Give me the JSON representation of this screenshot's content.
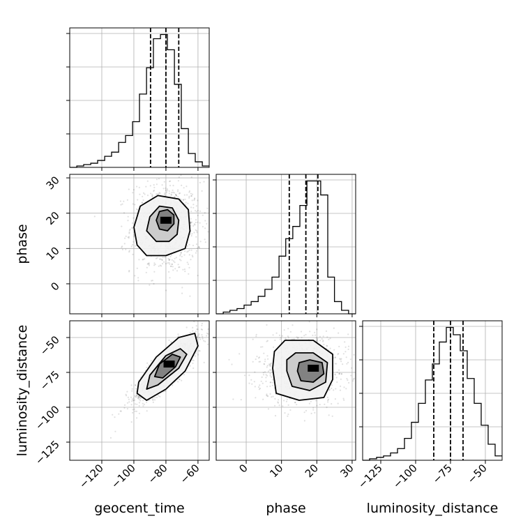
{
  "chart_data": {
    "type": "corner",
    "parameters": [
      "geocent_time",
      "phase",
      "luminosity_distance"
    ],
    "axis_labels": {
      "x": [
        "geocent_time",
        "phase",
        "luminosity_distance"
      ],
      "y": [
        "",
        "phase",
        "luminosity_distance"
      ]
    },
    "ranges": {
      "geocent_time": [
        -140,
        -53
      ],
      "phase": [
        -8.5,
        31
      ],
      "luminosity_distance": [
        -138,
        -38
      ]
    },
    "ticks": {
      "geocent_time": [
        -120,
        -100,
        -80,
        -60
      ],
      "phase": [
        0,
        10,
        20,
        30
      ],
      "luminosity_distance": [
        -125,
        -100,
        -75,
        -50
      ]
    },
    "tick_labels": {
      "geocent_time": [
        "−120",
        "−100",
        "−80",
        "−60"
      ],
      "phase": [
        "0",
        "10",
        "20",
        "30"
      ],
      "luminosity_distance": [
        "−125",
        "−100",
        "−75",
        "−50"
      ]
    },
    "grid": true,
    "histograms": {
      "geocent_time": {
        "bin_edges": [
          -140,
          -135.6,
          -131.3,
          -126.9,
          -122.6,
          -118.2,
          -113.9,
          -109.5,
          -105.2,
          -100.8,
          -96.5,
          -92.1,
          -87.8,
          -83.4,
          -79.1,
          -74.7,
          -70.4,
          -66,
          -61.7,
          -57.3,
          -53
        ],
        "counts": [
          0,
          1,
          2,
          3,
          5,
          8,
          11,
          18,
          23,
          33,
          53,
          72,
          93,
          96,
          85,
          60,
          28,
          10,
          4,
          1
        ],
        "quantiles": [
          -89.6,
          -80,
          -72
        ]
      },
      "phase": {
        "bin_edges": [
          -8.5,
          -6.5,
          -4.6,
          -2.6,
          -0.6,
          1.4,
          3.4,
          5.3,
          7.3,
          9.3,
          11.2,
          13.2,
          15.2,
          17.2,
          19.1,
          21.1,
          23.1,
          25,
          27,
          29,
          31
        ],
        "counts": [
          0,
          1,
          2,
          3,
          5,
          7,
          10,
          14,
          21,
          33,
          43,
          50,
          62,
          76,
          76,
          68,
          21,
          7,
          2,
          0
        ],
        "quantiles": [
          12.2,
          16.9,
          20.3
        ]
      },
      "luminosity_distance": {
        "bin_edges": [
          -138,
          -133,
          -128,
          -123,
          -118,
          -113,
          -108,
          -103,
          -98,
          -93,
          -88,
          -83,
          -78,
          -73,
          -68,
          -63,
          -58,
          -53,
          -48,
          -43,
          -38
        ],
        "counts": [
          0,
          1,
          2,
          3,
          5,
          8,
          15,
          26,
          39,
          55,
          66,
          81,
          91,
          86,
          75,
          56,
          39,
          24,
          11,
          3
        ],
        "quantiles": [
          -87,
          -75,
          -66
        ]
      }
    },
    "joint": [
      {
        "x_param": "geocent_time",
        "y_param": "phase",
        "mode": [
          -80,
          18
        ],
        "contours": [
          [
            [
              -98,
              11
            ],
            [
              -100,
              16
            ],
            [
              -96,
              22
            ],
            [
              -85,
              25
            ],
            [
              -72,
              24
            ],
            [
              -66,
              21
            ],
            [
              -65,
              15
            ],
            [
              -68,
              10
            ],
            [
              -80,
              8
            ],
            [
              -92,
              8
            ]
          ],
          [
            [
              -92,
              15
            ],
            [
              -90,
              19
            ],
            [
              -84,
              22
            ],
            [
              -76,
              21.5
            ],
            [
              -72,
              18
            ],
            [
              -73,
              14
            ],
            [
              -78,
              12
            ],
            [
              -86,
              12
            ]
          ],
          [
            [
              -86,
              18
            ],
            [
              -84,
              20.5
            ],
            [
              -79,
              21
            ],
            [
              -75,
              19.5
            ],
            [
              -75,
              17
            ],
            [
              -79,
              15
            ],
            [
              -84,
              15.5
            ]
          ]
        ]
      },
      {
        "x_param": "geocent_time",
        "y_param": "luminosity_distance",
        "mode": [
          -78,
          -69
        ],
        "contours": [
          [
            [
              -98,
              -90
            ],
            [
              -92,
              -95
            ],
            [
              -80,
              -87
            ],
            [
              -68,
              -74
            ],
            [
              -60,
              -56
            ],
            [
              -62,
              -47
            ],
            [
              -72,
              -50
            ],
            [
              -86,
              -64
            ],
            [
              -97,
              -82
            ]
          ],
          [
            [
              -92,
              -87
            ],
            [
              -85,
              -84
            ],
            [
              -72,
              -72
            ],
            [
              -67,
              -62
            ],
            [
              -71,
              -58
            ],
            [
              -80,
              -63
            ],
            [
              -90,
              -77
            ]
          ],
          [
            [
              -87,
              -78
            ],
            [
              -82,
              -79
            ],
            [
              -74,
              -71
            ],
            [
              -71,
              -64
            ],
            [
              -76,
              -62
            ],
            [
              -84,
              -69
            ]
          ]
        ]
      },
      {
        "x_param": "phase",
        "y_param": "luminosity_distance",
        "mode": [
          19,
          -72
        ],
        "contours": [
          [
            [
              7.5,
              -72
            ],
            [
              8.5,
              -90
            ],
            [
              15,
              -95
            ],
            [
              22,
              -93
            ],
            [
              24.5,
              -80
            ],
            [
              24.5,
              -62
            ],
            [
              19,
              -52
            ],
            [
              11,
              -52
            ],
            [
              8,
              -60
            ]
          ],
          [
            [
              11.5,
              -74
            ],
            [
              13,
              -85
            ],
            [
              18,
              -88
            ],
            [
              22.5,
              -82
            ],
            [
              23,
              -68
            ],
            [
              19,
              -61
            ],
            [
              14,
              -61
            ],
            [
              11.5,
              -66
            ]
          ],
          [
            [
              14.5,
              -74
            ],
            [
              15.5,
              -81
            ],
            [
              19,
              -82
            ],
            [
              22,
              -76
            ],
            [
              21.5,
              -68
            ],
            [
              18,
              -66
            ],
            [
              15,
              -68
            ]
          ]
        ]
      }
    ]
  }
}
